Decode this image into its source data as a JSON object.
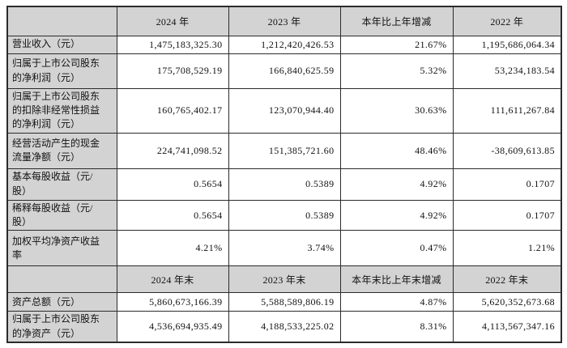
{
  "colors": {
    "page_bg": "#ffffff",
    "header_bg": "#d3d3d3",
    "cell_bg": "#ffffff",
    "border": "#2b2b2b",
    "text": "#111111"
  },
  "table": {
    "sections": [
      {
        "headers": [
          "2024 年",
          "2023 年",
          "本年比上年增减",
          "2022 年"
        ],
        "rows": [
          {
            "label": "营业收入（元）",
            "values": [
              "1,475,183,325.30",
              "1,212,420,426.53",
              "21.67%",
              "1,195,686,064.34"
            ]
          },
          {
            "label": "归属于上市公司股东\n的净利润（元）",
            "values": [
              "175,708,529.19",
              "166,840,625.59",
              "5.32%",
              "53,234,183.54"
            ]
          },
          {
            "label": "归属于上市公司股东\n的扣除非经常性损益\n的净利润（元）",
            "values": [
              "160,765,402.17",
              "123,070,944.40",
              "30.63%",
              "111,611,267.84"
            ]
          },
          {
            "label": "经营活动产生的现金\n流量净额（元）",
            "values": [
              "224,741,098.52",
              "151,385,721.60",
              "48.46%",
              "-38,609,613.85"
            ]
          },
          {
            "label": "基本每股收益（元/\n股）",
            "values": [
              "0.5654",
              "0.5389",
              "4.92%",
              "0.1707"
            ]
          },
          {
            "label": "稀释每股收益（元/\n股）",
            "values": [
              "0.5654",
              "0.5389",
              "4.92%",
              "0.1707"
            ]
          },
          {
            "label": "加权平均净资产收益\n率",
            "values": [
              "4.21%",
              "3.74%",
              "0.47%",
              "1.21%"
            ]
          }
        ]
      },
      {
        "headers": [
          "2024 年末",
          "2023 年末",
          "本年末比上年末增减",
          "2022 年末"
        ],
        "rows": [
          {
            "label": "资产总额（元）",
            "values": [
              "5,860,673,166.39",
              "5,588,589,806.19",
              "4.87%",
              "5,620,352,673.68"
            ]
          },
          {
            "label": "归属于上市公司股东\n的净资产（元）",
            "values": [
              "4,536,694,935.49",
              "4,188,533,225.02",
              "8.31%",
              "4,113,567,347.16"
            ]
          }
        ]
      }
    ]
  }
}
